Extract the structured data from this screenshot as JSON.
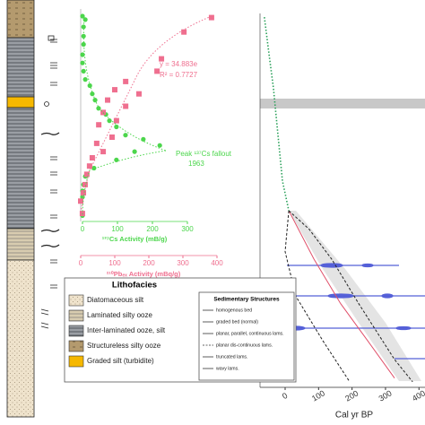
{
  "chart_data": [
    {
      "type": "scatter",
      "xlabel": "¹³⁷Cs Activity (mB/g)",
      "x2label": "²¹⁰Pbₑₓ Activity (mBq/g)",
      "xlim": [
        0,
        300
      ],
      "xticks": [
        0,
        100,
        200,
        300
      ],
      "x2lim": [
        0,
        400
      ],
      "x2ticks": [
        0,
        100,
        200,
        300,
        400
      ],
      "ylim": [
        0,
        100
      ],
      "annotations": [
        "y = 34.883e",
        "R² = 0.7727",
        "Peak ¹³⁷Cs fallout",
        "1963"
      ],
      "series": [
        {
          "color": "#4cd64c",
          "marker": "circle",
          "x": [
            0,
            8,
            3,
            3,
            3,
            0,
            0,
            3,
            8,
            21,
            28,
            36,
            46,
            67,
            77,
            97,
            123,
            174,
            221,
            149,
            97,
            33,
            8,
            3,
            0,
            0,
            0
          ],
          "values": [
            1.3,
            3,
            6.5,
            11,
            15,
            20,
            24,
            28,
            32,
            35,
            39,
            42,
            46,
            49,
            52,
            55,
            59,
            61,
            64,
            67,
            71,
            75,
            79,
            83,
            86,
            89,
            98
          ]
        },
        {
          "color": "#ef6f8f",
          "marker": "square",
          "axis": "x2",
          "x": [
            384,
            303,
            237,
            224,
            132,
            100,
            171,
            79,
            132,
            66,
            105,
            53,
            92,
            47,
            66,
            34,
            26,
            18,
            13,
            8,
            0,
            5
          ],
          "values": [
            2,
            9,
            22,
            28,
            33,
            37,
            39,
            42,
            45,
            48,
            52,
            54,
            60,
            63,
            67,
            70,
            74,
            78,
            83,
            87,
            91,
            97
          ]
        }
      ]
    },
    {
      "type": "line",
      "xlabel": "Cal yr BP",
      "xlim": [
        -75,
        418
      ],
      "xticks": [
        0,
        100,
        200,
        300,
        400
      ],
      "ylim": [
        0,
        100
      ],
      "series": [
        {
          "color": "#2aa05a",
          "dash": "dots",
          "x": [
            -62,
            -48,
            -35,
            -21,
            -8,
            11
          ],
          "values": [
            1,
            11,
            20,
            33,
            45,
            53
          ]
        },
        {
          "color": "#e0506a",
          "dash": "solid",
          "x": [
            11,
            86,
            166,
            247,
            327
          ],
          "values": [
            53,
            66,
            78,
            88,
            98
          ]
        },
        {
          "color": "#222222",
          "dash": "dashed",
          "x": [
            11,
            0,
            32,
            113,
            193
          ],
          "values": [
            53,
            64,
            76,
            88,
            99
          ]
        },
        {
          "color": "#222222",
          "dash": "dashed",
          "x": [
            11,
            72,
            139,
            220,
            327,
            381
          ],
          "values": [
            53,
            58,
            66,
            78,
            93,
            99
          ]
        }
      ]
    }
  ],
  "lithofacies": {
    "title": "Lithofacies",
    "items": [
      "Diatomaceous silt",
      "Laminated silty ooze",
      "Inter-laminated ooze, silt",
      "Structureless silty ooze",
      "Graded silt (turbidite)"
    ]
  },
  "sedimentary_structures": {
    "title": "Sedimentary Structures",
    "items": [
      "homogenous bed",
      "graded bed (normal)",
      "planar, parallel, continuous lams.",
      "planar dis-continuous lams.",
      "truncated lams.",
      "wavy lams."
    ]
  }
}
